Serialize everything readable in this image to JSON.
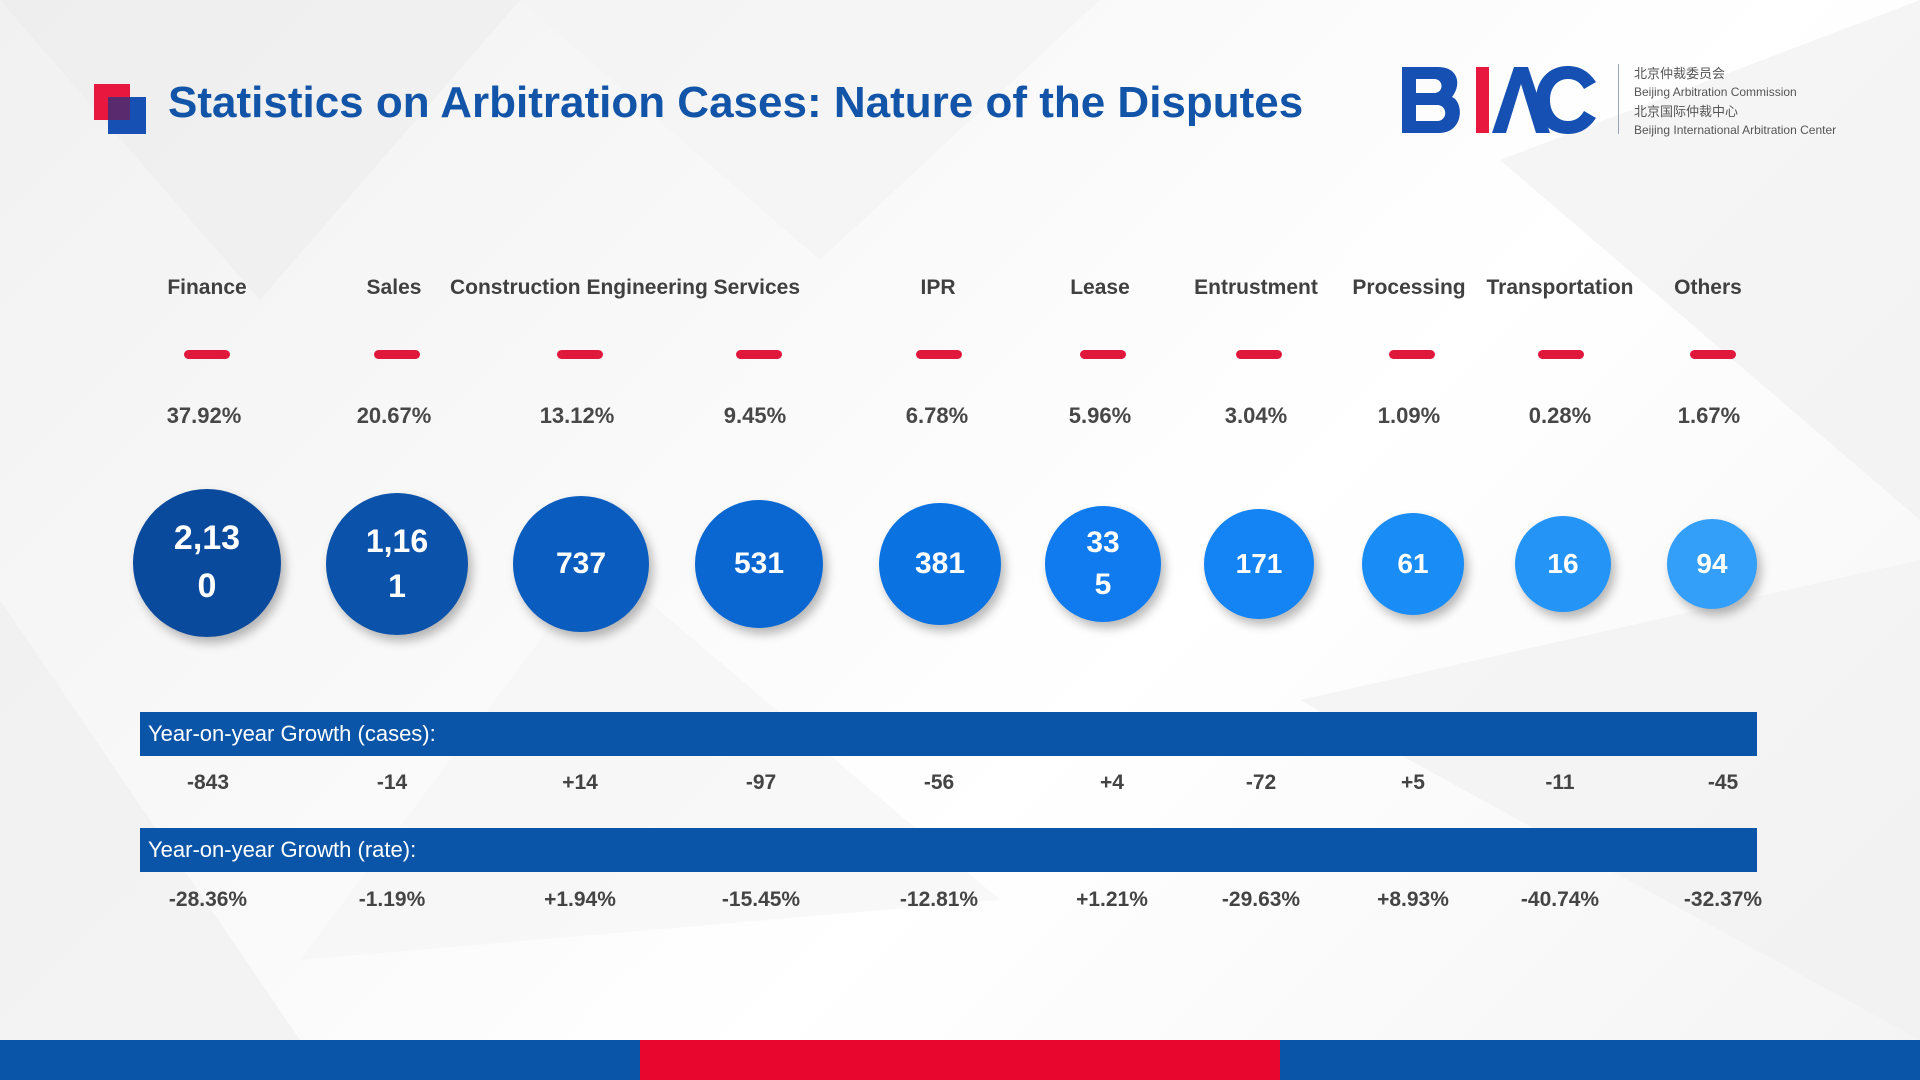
{
  "header": {
    "title": "Statistics on Arbitration Cases: Nature of the Disputes",
    "logo": {
      "wordmark": "BIAC",
      "line1_cn": "北京仲裁委员会",
      "line1_en": "Beijing Arbitration Commission",
      "line2_cn": "北京国际仲裁中心",
      "line2_en": "Beijing International Arbitration Center"
    }
  },
  "categories": [
    {
      "label": "Finance",
      "percent": "37.92%",
      "cases_line1": "2,13",
      "cases_line2": "0",
      "yoy_cases": "-843",
      "yoy_rate": "-28.36%"
    },
    {
      "label": "Sales",
      "percent": "20.67%",
      "cases_line1": "1,16",
      "cases_line2": "1",
      "yoy_cases": "-14",
      "yoy_rate": "-1.19%"
    },
    {
      "label": "Construction Engineering Services",
      "percent": "13.12%",
      "cases_line1": "737",
      "cases_line2": "",
      "yoy_cases": "+14",
      "yoy_rate": "+1.94%"
    },
    {
      "label": "",
      "percent": "9.45%",
      "cases_line1": "531",
      "cases_line2": "",
      "yoy_cases": "-97",
      "yoy_rate": "-15.45%"
    },
    {
      "label": "IPR",
      "percent": "6.78%",
      "cases_line1": "381",
      "cases_line2": "",
      "yoy_cases": "-56",
      "yoy_rate": "-12.81%"
    },
    {
      "label": "Lease",
      "percent": "5.96%",
      "cases_line1": "33",
      "cases_line2": "5",
      "yoy_cases": "+4",
      "yoy_rate": "+1.21%"
    },
    {
      "label": "Entrustment",
      "percent": "3.04%",
      "cases_line1": "171",
      "cases_line2": "",
      "yoy_cases": "-72",
      "yoy_rate": "-29.63%"
    },
    {
      "label": "Processing",
      "percent": "1.09%",
      "cases_line1": "61",
      "cases_line2": "",
      "yoy_cases": "+5",
      "yoy_rate": "+8.93%"
    },
    {
      "label": "Transportation",
      "percent": "0.28%",
      "cases_line1": "16",
      "cases_line2": "",
      "yoy_cases": "-11",
      "yoy_rate": "-40.74%"
    },
    {
      "label": "Others",
      "percent": "1.67%",
      "cases_line1": "94",
      "cases_line2": "",
      "yoy_cases": "-45",
      "yoy_rate": "-32.37%"
    }
  ],
  "growth": {
    "cases_label": "Year-on-year Growth (cases):",
    "rate_label": "Year-on-year Growth (rate):"
  },
  "colors": {
    "title_blue": "#1254a8",
    "accent_red": "#e0183c",
    "bar_blue": "#0a55a8",
    "bubble_gradient": [
      "#0a4a9c",
      "#0b52aa",
      "#0a5cbf",
      "#0a67d2",
      "#0b72e2",
      "#0f7bee",
      "#1484f4",
      "#1a8cf6",
      "#2495f7",
      "#339ff8"
    ]
  }
}
